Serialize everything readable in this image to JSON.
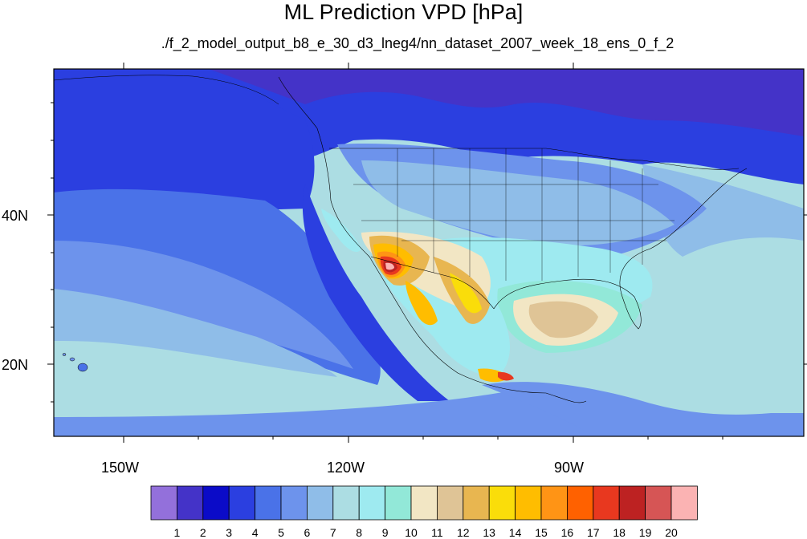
{
  "header": {
    "title": "ML Prediction VPD [hPa]",
    "subtitle": "./f_2_model_output_b8_e_30_d3_lneg4/nn_dataset_2007_week_18_ens_0_f_2"
  },
  "axes": {
    "x_ticks": [
      "150W",
      "120W",
      "90W"
    ],
    "y_ticks": [
      "40N",
      "20N"
    ]
  },
  "colorbar": {
    "labels": [
      "1",
      "2",
      "3",
      "4",
      "5",
      "6",
      "7",
      "8",
      "9",
      "10",
      "11",
      "12",
      "13",
      "14",
      "15",
      "16",
      "17",
      "18",
      "19",
      "20"
    ],
    "colors": [
      "#9370db",
      "#4433c8",
      "#0b0bc8",
      "#2b3fe0",
      "#4a72e8",
      "#6d93ec",
      "#8fbde8",
      "#acdde3",
      "#9eeaf0",
      "#92e8d8",
      "#f2e6c4",
      "#dfc496",
      "#e8b650",
      "#fadd0a",
      "#ffbd00",
      "#ff9415",
      "#ff6100",
      "#e8381f",
      "#bd2222",
      "#d65555",
      "#fbb3b3"
    ]
  },
  "map": {
    "colors": {
      "ocean_base": "#acdde3",
      "deep": "#2b3fe0",
      "purple": "#4433c8",
      "mid": "#4a72e8",
      "light": "#6d93ec",
      "pale": "#8fbde8",
      "cyan": "#9eeaf0",
      "aqua": "#92e8d8",
      "tan": "#f2e6c4",
      "beige": "#dfc496",
      "gold": "#e8b650",
      "yellow": "#fadd0a",
      "orange": "#ffbd00",
      "dorange": "#ff9415",
      "red": "#e8381f",
      "dred": "#bd2222",
      "pink": "#fbb3b3"
    }
  }
}
